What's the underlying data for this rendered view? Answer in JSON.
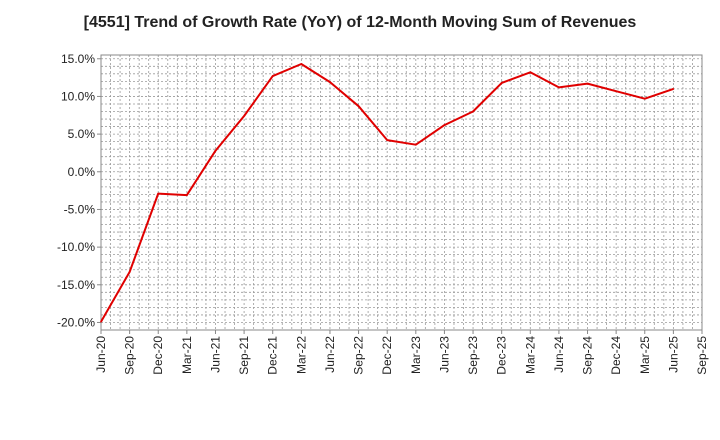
{
  "chart_data": {
    "type": "line",
    "title": "[4551]  Trend of Growth Rate (YoY) of 12-Month Moving Sum of Revenues",
    "xlabel": "",
    "ylabel": "",
    "ylim": [
      -21,
      15.5
    ],
    "y_ticks": [
      "15.0%",
      "10.0%",
      "5.0%",
      "0.0%",
      "-5.0%",
      "-10.0%",
      "-15.0%",
      "-20.0%"
    ],
    "y_tick_values": [
      15,
      10,
      5,
      0,
      -5,
      -10,
      -15,
      -20
    ],
    "x_ticks": [
      "Jun-20",
      "Sep-20",
      "Dec-20",
      "Mar-21",
      "Jun-21",
      "Sep-21",
      "Dec-21",
      "Mar-22",
      "Jun-22",
      "Sep-22",
      "Dec-22",
      "Mar-23",
      "Jun-23",
      "Sep-23",
      "Dec-23",
      "Mar-24",
      "Jun-24",
      "Sep-24",
      "Dec-24",
      "Mar-25",
      "Jun-25",
      "Sep-25"
    ],
    "grid": true,
    "series": [
      {
        "color": "#e00000",
        "x": [
          "Jun-20",
          "Sep-20",
          "Dec-20",
          "Mar-21",
          "Jun-21",
          "Sep-21",
          "Dec-21",
          "Mar-22",
          "Jun-22",
          "Sep-22",
          "Dec-22",
          "Mar-23",
          "Jun-23",
          "Sep-23",
          "Dec-23",
          "Mar-24",
          "Jun-24",
          "Sep-24",
          "Dec-24",
          "Mar-25",
          "Jun-25"
        ],
        "values": [
          -19.9,
          -13.3,
          -2.9,
          -3.1,
          2.8,
          7.4,
          12.7,
          14.3,
          11.9,
          8.7,
          4.2,
          3.6,
          6.2,
          8.0,
          11.8,
          13.2,
          11.2,
          11.7,
          10.7,
          9.7,
          11.0
        ]
      }
    ]
  }
}
